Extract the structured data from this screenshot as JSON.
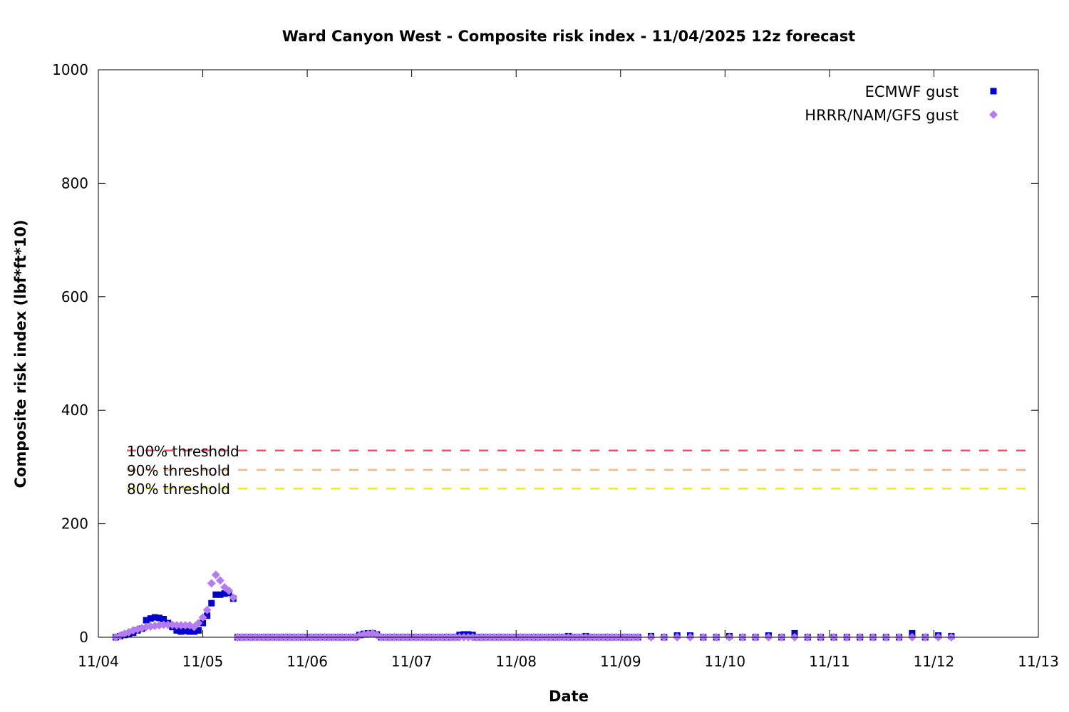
{
  "chart_data": {
    "type": "scatter",
    "title": "Ward Canyon West - Composite risk index - 11/04/2025 12z forecast",
    "xlabel": "Date",
    "ylabel": "Composite risk index (lbf*ft*10)",
    "ylim": [
      0,
      1000
    ],
    "yticks": [
      0,
      200,
      400,
      600,
      800,
      1000
    ],
    "xlim": [
      "11/04 00z",
      "11/13 00z"
    ],
    "xticks": [
      "11/04",
      "11/05",
      "11/06",
      "11/07",
      "11/08",
      "11/09",
      "11/10",
      "11/11",
      "11/12",
      "11/13"
    ],
    "grid": false,
    "legend_position": "top-right",
    "thresholds": [
      {
        "label": "100% threshold",
        "value": 329,
        "color": "#e8506e"
      },
      {
        "label": "90% threshold",
        "value": 295,
        "color": "#f5b784"
      },
      {
        "label": "80% threshold",
        "value": 262,
        "color": "#f2f200"
      }
    ],
    "x": [
      "11/04 04z",
      "11/04 05z",
      "11/04 06z",
      "11/04 07z",
      "11/04 08z",
      "11/04 09z",
      "11/04 10z",
      "11/04 11z",
      "11/04 12z",
      "11/04 13z",
      "11/04 14z",
      "11/04 15z",
      "11/04 16z",
      "11/04 17z",
      "11/04 18z",
      "11/04 19z",
      "11/04 20z",
      "11/04 21z",
      "11/04 22z",
      "11/04 23z",
      "11/05 00z",
      "11/05 01z",
      "11/05 02z",
      "11/05 03z",
      "11/05 04z",
      "11/05 05z",
      "11/05 06z",
      "11/05 07z",
      "11/05 08z",
      "11/05 09z",
      "11/05 10z",
      "11/05 11z",
      "11/05 12z",
      "11/05 13z",
      "11/05 14z",
      "11/05 15z",
      "11/05 16z",
      "11/05 17z",
      "11/05 18z",
      "11/05 19z",
      "11/05 20z",
      "11/05 21z",
      "11/05 22z",
      "11/05 23z",
      "11/06 00z",
      "11/06 01z",
      "11/06 02z",
      "11/06 03z",
      "11/06 04z",
      "11/06 05z",
      "11/06 06z",
      "11/06 07z",
      "11/06 08z",
      "11/06 09z",
      "11/06 10z",
      "11/06 11z",
      "11/06 12z",
      "11/06 13z",
      "11/06 14z",
      "11/06 15z",
      "11/06 16z",
      "11/06 17z",
      "11/06 18z",
      "11/06 19z",
      "11/06 20z",
      "11/06 21z",
      "11/06 22z",
      "11/06 23z",
      "11/07 00z",
      "11/07 01z",
      "11/07 02z",
      "11/07 03z",
      "11/07 04z",
      "11/07 05z",
      "11/07 06z",
      "11/07 07z",
      "11/07 08z",
      "11/07 09z",
      "11/07 10z",
      "11/07 11z",
      "11/07 12z",
      "11/07 13z",
      "11/07 14z",
      "11/07 15z",
      "11/07 16z",
      "11/07 17z",
      "11/07 18z",
      "11/07 19z",
      "11/07 20z",
      "11/07 21z",
      "11/07 22z",
      "11/07 23z",
      "11/08 00z",
      "11/08 01z",
      "11/08 02z",
      "11/08 03z",
      "11/08 04z",
      "11/08 05z",
      "11/08 06z",
      "11/08 07z",
      "11/08 08z",
      "11/08 09z",
      "11/08 10z",
      "11/08 11z",
      "11/08 12z",
      "11/08 13z",
      "11/08 14z",
      "11/08 15z",
      "11/08 16z",
      "11/08 17z",
      "11/08 18z",
      "11/08 19z",
      "11/08 20z",
      "11/08 21z",
      "11/08 22z",
      "11/08 23z",
      "11/09 00z",
      "11/09 01z",
      "11/09 02z",
      "11/09 03z",
      "11/09 04z",
      "11/09 07z",
      "11/09 10z",
      "11/09 13z",
      "11/09 16z",
      "11/09 19z",
      "11/09 22z",
      "11/10 01z",
      "11/10 04z",
      "11/10 07z",
      "11/10 10z",
      "11/10 13z",
      "11/10 16z",
      "11/10 19z",
      "11/10 22z",
      "11/11 01z",
      "11/11 04z",
      "11/11 07z",
      "11/11 10z",
      "11/11 13z",
      "11/11 16z",
      "11/11 19z",
      "11/11 22z",
      "11/12 01z",
      "11/12 04z"
    ],
    "series": [
      {
        "name": "ECMWF gust",
        "color": "#0000cc",
        "marker": "square",
        "values": [
          0,
          2,
          4,
          6,
          8,
          12,
          15,
          30,
          33,
          35,
          34,
          32,
          25,
          18,
          12,
          10,
          11,
          10,
          10,
          12,
          25,
          38,
          60,
          75,
          75,
          77,
          78,
          68,
          0,
          0,
          0,
          0,
          0,
          0,
          0,
          0,
          0,
          0,
          0,
          0,
          0,
          0,
          0,
          0,
          0,
          0,
          0,
          0,
          0,
          0,
          0,
          0,
          0,
          0,
          0,
          0,
          4,
          6,
          7,
          7,
          5,
          0,
          0,
          0,
          0,
          0,
          0,
          0,
          0,
          0,
          0,
          0,
          0,
          0,
          0,
          0,
          0,
          0,
          0,
          4,
          5,
          5,
          4,
          0,
          0,
          0,
          0,
          0,
          0,
          0,
          0,
          0,
          0,
          0,
          0,
          0,
          0,
          0,
          0,
          0,
          0,
          0,
          0,
          0,
          2,
          0,
          0,
          0,
          2,
          0,
          0,
          0,
          0,
          0,
          0,
          0,
          0,
          0,
          0,
          0,
          0,
          2,
          0,
          3,
          3,
          0,
          0,
          2,
          0,
          0,
          3,
          0,
          7,
          0,
          0,
          0,
          0,
          0,
          0,
          0,
          0,
          7,
          0,
          3,
          2
        ]
      },
      {
        "name": "HRRR/NAM/GFS gust",
        "color": "#b57cf2",
        "marker": "diamond",
        "values": [
          0,
          3,
          6,
          9,
          12,
          14,
          16,
          18,
          19,
          20,
          21,
          22,
          22,
          22,
          21,
          21,
          21,
          21,
          18,
          25,
          35,
          48,
          95,
          110,
          100,
          88,
          82,
          70,
          0,
          0,
          0,
          0,
          0,
          0,
          0,
          0,
          0,
          0,
          0,
          0,
          0,
          0,
          0,
          0,
          0,
          0,
          0,
          0,
          0,
          0,
          0,
          0,
          0,
          0,
          0,
          0,
          3,
          5,
          6,
          7,
          4,
          0,
          0,
          0,
          0,
          0,
          0,
          0,
          0,
          0,
          0,
          0,
          0,
          0,
          0,
          0,
          0,
          0,
          0,
          0,
          0,
          0,
          0,
          0,
          0,
          0,
          0,
          0,
          0,
          0,
          0,
          0,
          0,
          0,
          0,
          0,
          0,
          0,
          0,
          0,
          0,
          0,
          0,
          0,
          0,
          0,
          0,
          0,
          0,
          0,
          0,
          0,
          0,
          0,
          0,
          0,
          0,
          0,
          0,
          0,
          0,
          0,
          0,
          0,
          0,
          0,
          0,
          0,
          0,
          0,
          0,
          0,
          0,
          0,
          0,
          0,
          0,
          0,
          0,
          0,
          0,
          0,
          0,
          0,
          0
        ]
      }
    ]
  }
}
